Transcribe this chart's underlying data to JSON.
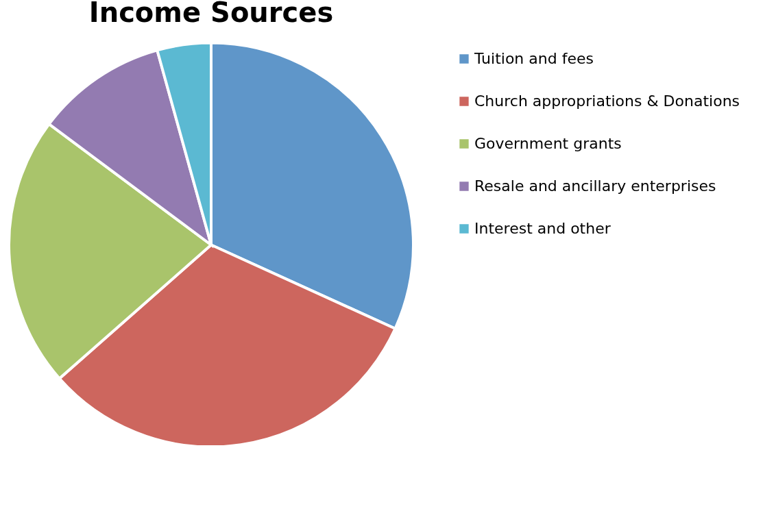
{
  "chart_data": {
    "type": "pie",
    "title": "Income Sources",
    "categories": [
      "Tuition and fees",
      "Church appropriations & Donations",
      "Government grants",
      "Resale and ancillary enterprises",
      "Interest and other"
    ],
    "values": [
      31.8,
      31.7,
      21.7,
      10.5,
      4.3
    ],
    "colors": [
      "#5f96c9",
      "#cd665e",
      "#a9c46b",
      "#937bb1",
      "#5bb9d2"
    ],
    "legend": "right"
  }
}
